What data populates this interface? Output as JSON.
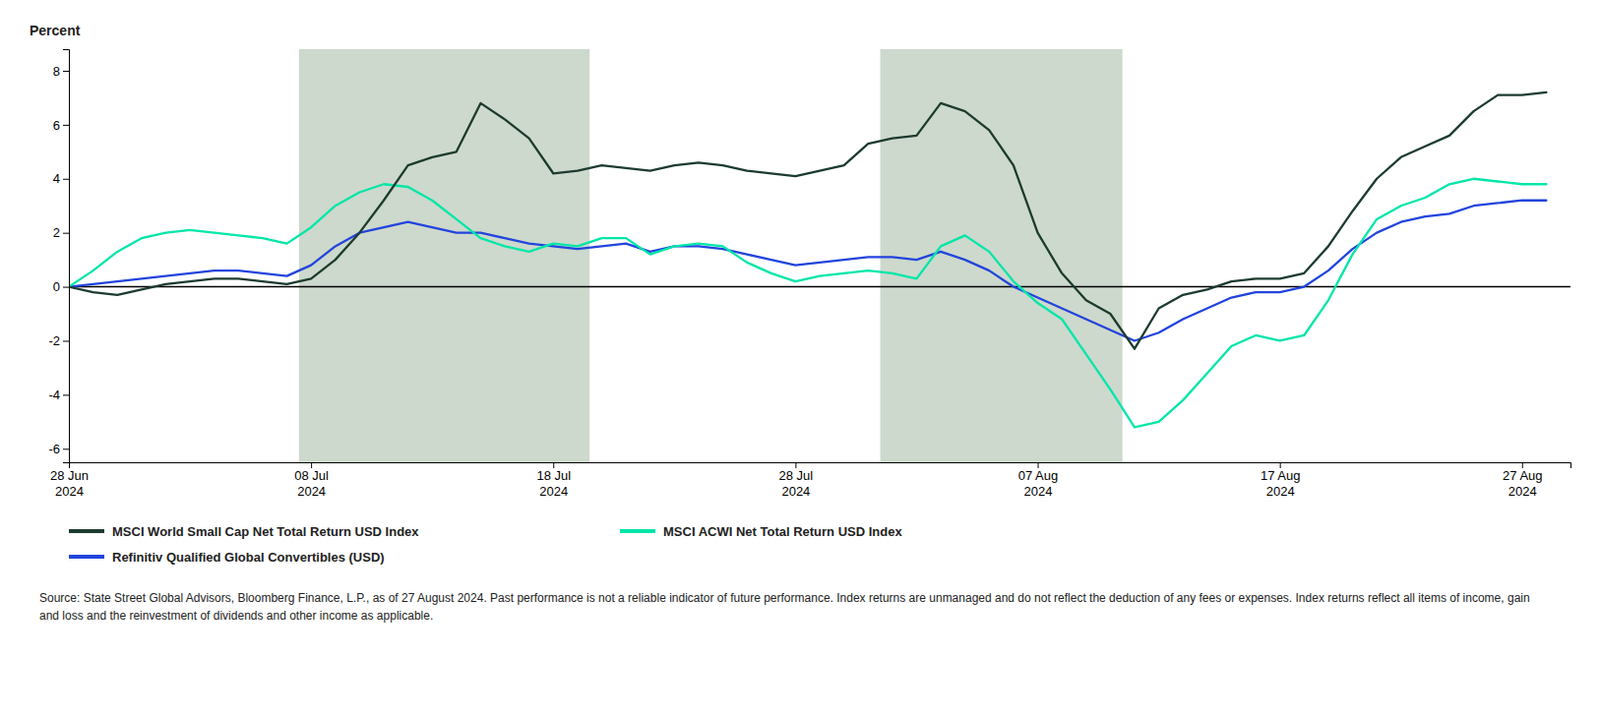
{
  "chart_data": {
    "type": "line",
    "y_label": "Percent",
    "categories": [
      "28 Jun\n2024",
      null,
      null,
      null,
      null,
      null,
      null,
      null,
      null,
      null,
      "08 Jul\n2024",
      null,
      null,
      null,
      null,
      null,
      null,
      null,
      null,
      null,
      "18 Jul\n2024",
      null,
      null,
      null,
      null,
      null,
      null,
      null,
      null,
      null,
      "28 Jul\n2024",
      null,
      null,
      null,
      null,
      null,
      null,
      null,
      null,
      null,
      "07 Aug\n2024",
      null,
      null,
      null,
      null,
      null,
      null,
      null,
      null,
      null,
      "17 Aug\n2024",
      null,
      null,
      null,
      null,
      null,
      null,
      null,
      null,
      null,
      "27 Aug\n2024",
      null
    ],
    "series": [
      {
        "name": "MSCI World Small Cap Net Total Return USD Index",
        "color": "#1c3b2e",
        "values": [
          0.0,
          -0.2,
          -0.3,
          -0.1,
          0.1,
          0.2,
          0.3,
          0.3,
          0.2,
          0.1,
          0.3,
          1.0,
          2.0,
          3.2,
          4.5,
          4.8,
          5.0,
          6.8,
          6.2,
          5.5,
          4.2,
          4.3,
          4.5,
          4.4,
          4.3,
          4.5,
          4.6,
          4.5,
          4.3,
          4.2,
          4.1,
          4.3,
          4.5,
          5.3,
          5.5,
          5.6,
          6.8,
          6.5,
          5.8,
          4.5,
          2.0,
          0.5,
          -0.5,
          -1.0,
          -2.3,
          -0.8,
          -0.3,
          -0.1,
          0.2,
          0.3,
          0.3,
          0.5,
          1.5,
          2.8,
          4.0,
          4.8,
          5.2,
          5.6,
          6.5,
          7.1,
          7.1,
          7.2
        ]
      },
      {
        "name": "MSCI ACWI Net Total Return USD Index",
        "color": "#00e6a8",
        "values": [
          0.0,
          0.6,
          1.3,
          1.8,
          2.0,
          2.1,
          2.0,
          1.9,
          1.8,
          1.6,
          2.2,
          3.0,
          3.5,
          3.8,
          3.7,
          3.2,
          2.5,
          1.8,
          1.5,
          1.3,
          1.6,
          1.5,
          1.8,
          1.8,
          1.2,
          1.5,
          1.6,
          1.5,
          0.9,
          0.5,
          0.2,
          0.4,
          0.5,
          0.6,
          0.5,
          0.3,
          1.5,
          1.9,
          1.3,
          0.2,
          -0.6,
          -1.2,
          -2.5,
          -3.8,
          -5.2,
          -5.0,
          -4.2,
          -3.2,
          -2.2,
          -1.8,
          -2.0,
          -1.8,
          -0.5,
          1.2,
          2.5,
          3.0,
          3.3,
          3.8,
          4.0,
          3.9,
          3.8,
          3.8
        ]
      },
      {
        "name": "Refinitiv Qualified Global Convertibles (USD)",
        "color": "#2244dd",
        "values": [
          0.0,
          0.1,
          0.2,
          0.3,
          0.4,
          0.5,
          0.6,
          0.6,
          0.5,
          0.4,
          0.8,
          1.5,
          2.0,
          2.2,
          2.4,
          2.2,
          2.0,
          2.0,
          1.8,
          1.6,
          1.5,
          1.4,
          1.5,
          1.6,
          1.3,
          1.5,
          1.5,
          1.4,
          1.2,
          1.0,
          0.8,
          0.9,
          1.0,
          1.1,
          1.1,
          1.0,
          1.3,
          1.0,
          0.6,
          0.0,
          -0.4,
          -0.8,
          -1.2,
          -1.6,
          -2.0,
          -1.7,
          -1.2,
          -0.8,
          -0.4,
          -0.2,
          -0.2,
          0.0,
          0.6,
          1.4,
          2.0,
          2.4,
          2.6,
          2.7,
          3.0,
          3.1,
          3.2,
          3.2
        ]
      }
    ],
    "ylim": [
      -6.5,
      8.8
    ],
    "yticks": [
      -6,
      -4,
      -2,
      0,
      2,
      4,
      6,
      8
    ],
    "shaded_regions": [
      {
        "xstart": 9.5,
        "xend": 21.5,
        "color": "#cdd9cc"
      },
      {
        "xstart": 33.5,
        "xend": 43.5,
        "color": "#cdd9cc"
      }
    ],
    "zero_line": {
      "value": 0,
      "color": "#000000"
    },
    "grid": false,
    "legend": "bottom",
    "note": "Source: State Street Global Advisors, Bloomberg Finance, L.P., as of 27 August 2024. Past performance is not a reliable indicator of future performance. Index returns are unmanaged and do not reflect the deduction of any fees or expenses. Index returns reflect all items of income, gain and loss and the reinvestment of dividends and other income as applicable."
  }
}
